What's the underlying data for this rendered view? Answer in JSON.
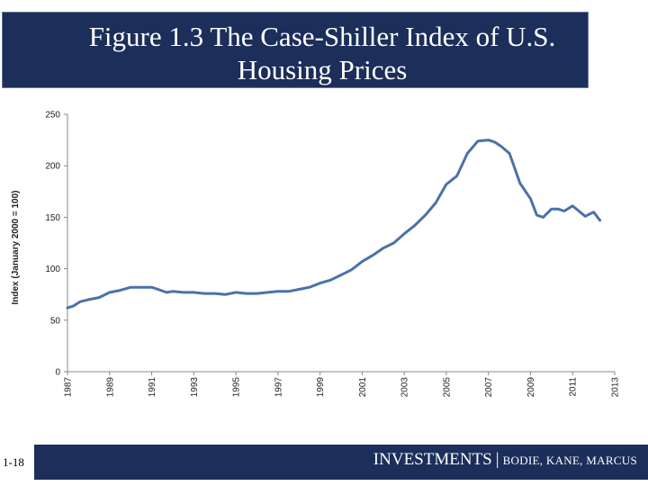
{
  "slide": {
    "title": "Figure 1.3 The Case-Shiller Index of U.S. Housing Prices",
    "footer_main": "INVESTMENTS",
    "footer_separator": "|",
    "footer_authors": "BODIE, KANE, MARCUS",
    "slide_number": "1-18",
    "colors": {
      "title_bg": "#1c2e5a",
      "line": "#4a72a8"
    }
  },
  "chart_data": {
    "type": "line",
    "title": "",
    "xlabel": "",
    "ylabel": "Index (January 2000 = 100)",
    "ylim": [
      0,
      250
    ],
    "xlim": [
      1987,
      2013
    ],
    "y_ticks": [
      "0",
      "50",
      "100",
      "150",
      "200",
      "250"
    ],
    "x_ticks": [
      "1987",
      "1989",
      "1991",
      "1993",
      "1995",
      "1997",
      "1999",
      "2001",
      "2003",
      "2005",
      "2007",
      "2009",
      "2011",
      "2013"
    ],
    "grid": false,
    "series": [
      {
        "name": "Case-Shiller Index",
        "x": [
          1987.0,
          1987.3,
          1987.6,
          1988.0,
          1988.5,
          1989.0,
          1989.5,
          1990.0,
          1990.5,
          1991.0,
          1991.3,
          1991.7,
          1992.0,
          1992.5,
          1993.0,
          1993.5,
          1994.0,
          1994.5,
          1995.0,
          1995.5,
          1996.0,
          1996.5,
          1997.0,
          1997.5,
          1998.0,
          1998.5,
          1999.0,
          1999.5,
          2000.0,
          2000.5,
          2001.0,
          2001.5,
          2002.0,
          2002.5,
          2003.0,
          2003.5,
          2004.0,
          2004.5,
          2005.0,
          2005.5,
          2006.0,
          2006.5,
          2007.0,
          2007.3,
          2007.6,
          2008.0,
          2008.5,
          2009.0,
          2009.3,
          2009.6,
          2010.0,
          2010.3,
          2010.6,
          2011.0,
          2011.3,
          2011.6,
          2012.0,
          2012.3
        ],
        "values": [
          62,
          64,
          68,
          70,
          72,
          77,
          79,
          82,
          82,
          82,
          80,
          77,
          78,
          77,
          77,
          76,
          76,
          75,
          77,
          76,
          76,
          77,
          78,
          78,
          80,
          82,
          86,
          89,
          94,
          99,
          107,
          113,
          120,
          125,
          134,
          142,
          152,
          164,
          182,
          190,
          212,
          224,
          225,
          223,
          219,
          212,
          183,
          168,
          152,
          150,
          158,
          158,
          156,
          161,
          156,
          151,
          155,
          147
        ]
      }
    ]
  }
}
